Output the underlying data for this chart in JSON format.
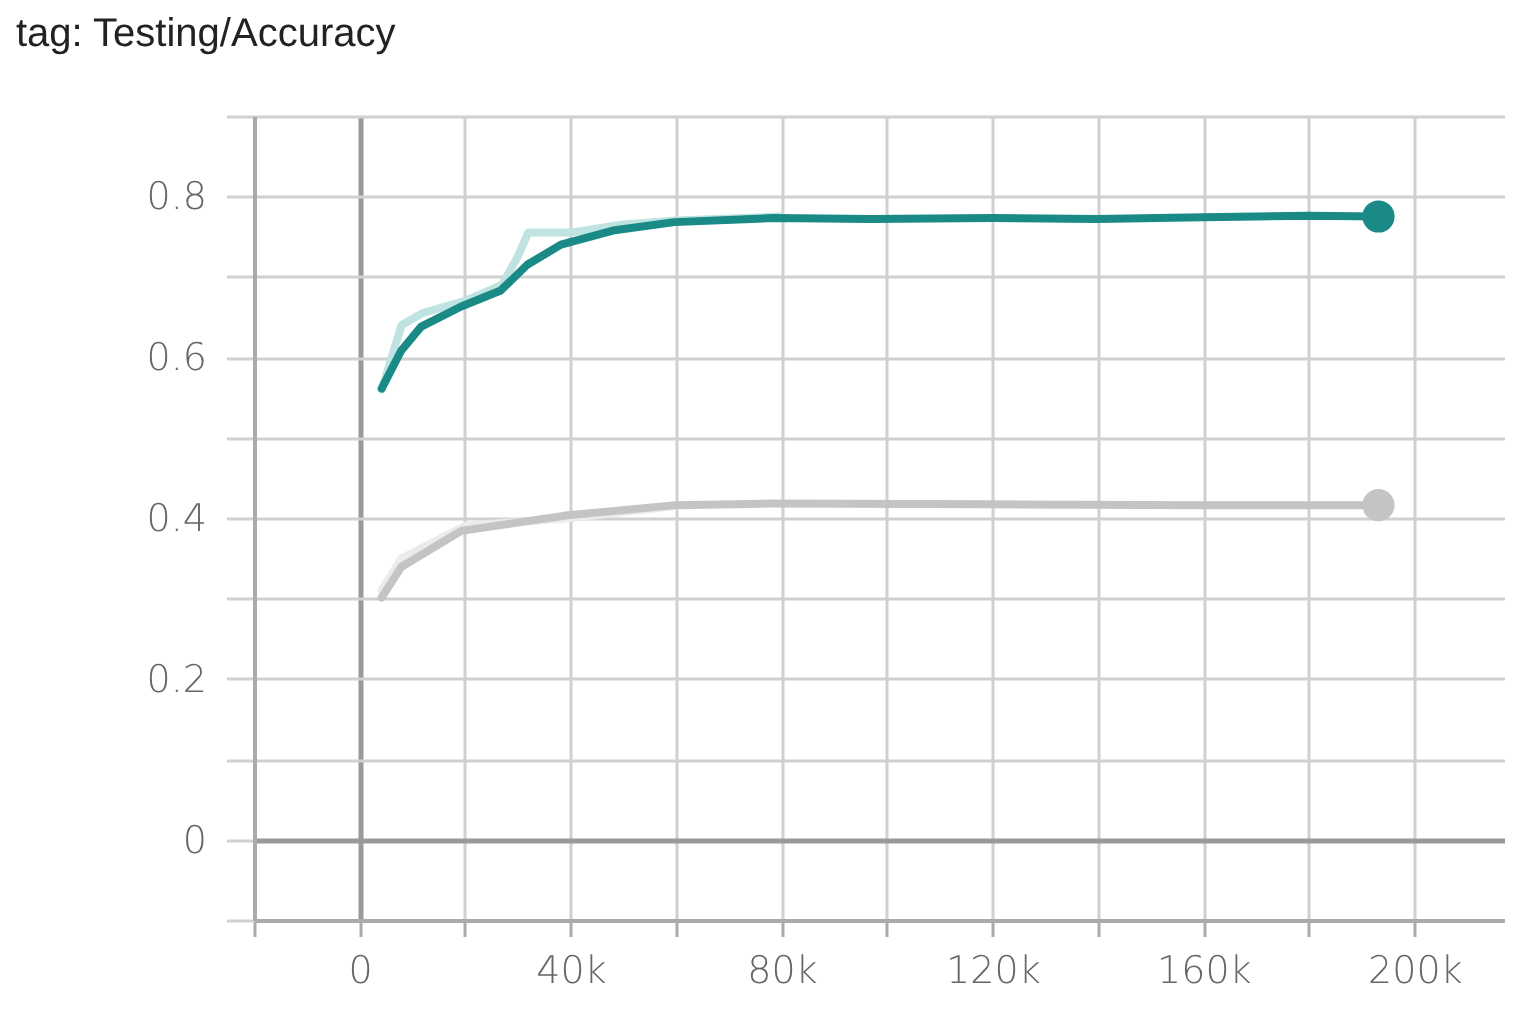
{
  "chart_data": {
    "type": "line",
    "title": "tag: Testing/Accuracy",
    "xlim": [
      -20000,
      217000
    ],
    "xticks": [
      {
        "value": -20000,
        "label": null
      },
      0,
      {
        "value": 20000,
        "label": null
      },
      {
        "value": 40000,
        "label": "40k"
      },
      {
        "value": 60000,
        "label": null
      },
      {
        "value": 80000,
        "label": "80k"
      },
      {
        "value": 100000,
        "label": null
      },
      {
        "value": 120000,
        "label": "120k"
      },
      {
        "value": 140000,
        "label": null
      },
      {
        "value": 160000,
        "label": "160k"
      },
      {
        "value": 180000,
        "label": null
      },
      {
        "value": 200000,
        "label": "200k"
      }
    ],
    "ylim": [
      -0.1,
      0.9
    ],
    "yticks": [
      {
        "value": -0.1,
        "label": null
      },
      0,
      {
        "value": 0.1,
        "label": null
      },
      0.2,
      {
        "value": 0.3,
        "label": null
      },
      0.4,
      {
        "value": 0.5,
        "label": null
      },
      0.6,
      {
        "value": 0.7,
        "label": null
      },
      0.8,
      {
        "value": 0.9,
        "label": null
      }
    ],
    "grid": true,
    "line_style": "solid",
    "series": [
      {
        "color": "#bfe3e0",
        "x": [
          4200,
          8000,
          12000,
          20000,
          27000,
          30000,
          32000,
          40000,
          50000,
          60000,
          80000
        ],
        "values": [
          0.56,
          0.64,
          0.655,
          0.67,
          0.69,
          0.725,
          0.755,
          0.755,
          0.765,
          0.77,
          0.775
        ]
      },
      {
        "color": "#ebebeb",
        "x": [
          4200,
          8000,
          20000,
          40000,
          60000
        ],
        "values": [
          0.31,
          0.35,
          0.39,
          0.4,
          0.415
        ]
      },
      {
        "color": "#1a8a87",
        "x": [
          4200,
          7900,
          11700,
          19300,
          26800,
          31800,
          38200,
          48400,
          59700,
          78600,
          97000,
          120000,
          140000,
          160000,
          180000,
          193200
        ],
        "values": [
          0.561,
          0.608,
          0.638,
          0.663,
          0.683,
          0.715,
          0.74,
          0.758,
          0.768,
          0.773,
          0.772,
          0.773,
          0.772,
          0.774,
          0.776,
          0.775
        ]
      },
      {
        "color": "#c4c4c4",
        "x": [
          4200,
          7900,
          19300,
          39000,
          60000,
          78000,
          120000,
          160000,
          193200
        ],
        "values": [
          0.301,
          0.339,
          0.384,
          0.403,
          0.416,
          0.418,
          0.417,
          0.416,
          0.416
        ]
      },
      {
        "type": "scatter",
        "color": "#1a8a87",
        "x": [
          193200
        ],
        "values": [
          0.775
        ]
      },
      {
        "type": "scatter",
        "color": "#c4c4c4",
        "x": [
          193200
        ],
        "values": [
          0.416
        ]
      }
    ]
  }
}
